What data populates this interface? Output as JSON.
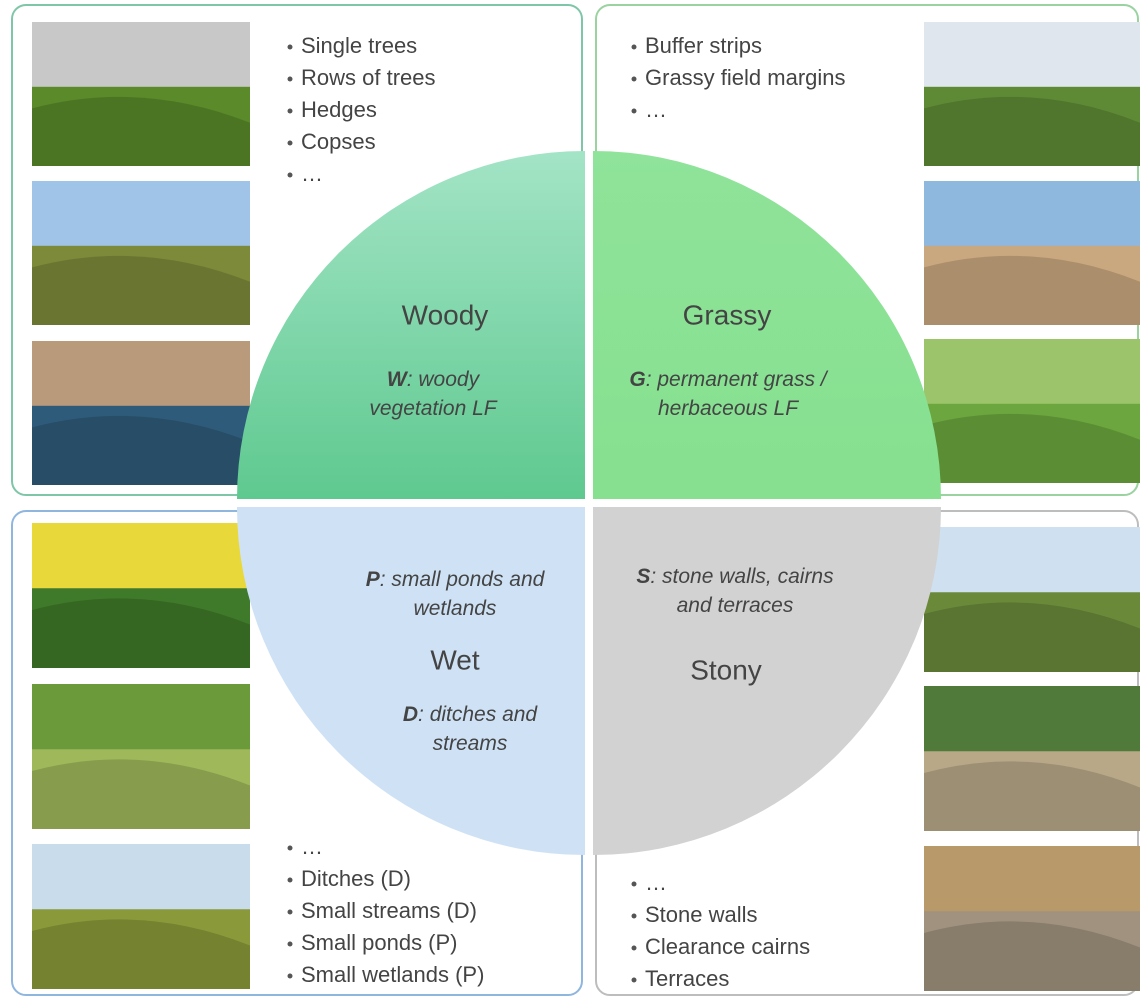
{
  "quadrants": [
    {
      "label": "Woody",
      "code": [
        {
          "letter": "W",
          "lines": [
            ": woody",
            "vegetation LF"
          ]
        }
      ],
      "bullets": [
        "Single trees",
        "Rows of trees",
        "Hedges",
        "Copses",
        "…"
      ]
    },
    {
      "label": "Grassy",
      "code": [
        {
          "letter": "G",
          "lines": [
            ": permanent grass /",
            "herbaceous LF"
          ]
        }
      ],
      "bullets": [
        "Buffer strips",
        "Grassy field margins",
        "…"
      ]
    },
    {
      "label": "Wet",
      "code": [
        {
          "letter": "P",
          "lines": [
            ": small ponds and",
            "wetlands"
          ]
        },
        {
          "letter": "D",
          "lines": [
            ": ditches and",
            "streams"
          ]
        }
      ],
      "bullets": [
        "…",
        "Ditches (D)",
        "Small streams (D)",
        "Small ponds (P)",
        "Small wetlands (P)"
      ]
    },
    {
      "label": "Stony",
      "code": [
        {
          "letter": "S",
          "lines": [
            ": stone walls, cairns",
            "and terraces"
          ]
        }
      ],
      "bullets": [
        "…",
        "Stone walls",
        "Clearance cairns",
        "Terraces"
      ]
    }
  ]
}
